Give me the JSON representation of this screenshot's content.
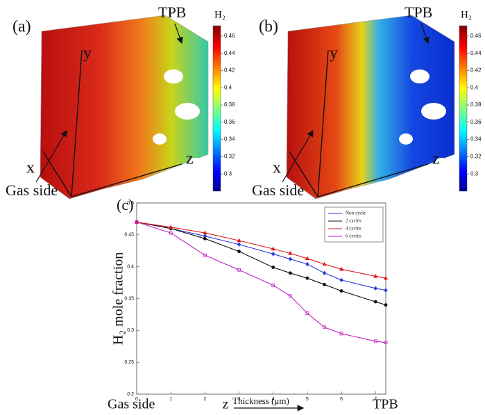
{
  "chart_data": [
    {
      "type": "volume",
      "panel_label": "(a)",
      "colorbar_title": "H₂",
      "style": "warm",
      "clim": [
        0.28,
        0.472
      ],
      "cticks": [
        0.3,
        0.32,
        0.34,
        0.36,
        0.38,
        0.4,
        0.42,
        0.44,
        0.46
      ],
      "annotations": {
        "tpb": "TPB",
        "gas_side": "Gas side",
        "x": "x",
        "y": "y",
        "z": "z"
      }
    },
    {
      "type": "volume",
      "panel_label": "(b)",
      "colorbar_title": "H₂",
      "style": "cool",
      "clim": [
        0.28,
        0.472
      ],
      "cticks": [
        0.3,
        0.32,
        0.34,
        0.36,
        0.38,
        0.4,
        0.42,
        0.44,
        0.46
      ],
      "annotations": {
        "tpb": "TPB",
        "gas_side": "Gas side",
        "x": "x",
        "y": "y",
        "z": "z"
      }
    },
    {
      "type": "line",
      "panel_label": "(c)",
      "y_label": "H₂ mole fraction",
      "x_label": "Thickness (μm)",
      "annotations": {
        "left": "Gas side",
        "axis": "z",
        "right": "TPB"
      },
      "x": [
        0,
        1,
        2,
        3,
        4,
        4.5,
        5,
        5.5,
        6,
        7,
        7.3
      ],
      "xlim": [
        0,
        7.3
      ],
      "xticks": [
        0,
        1,
        2,
        3,
        4,
        5,
        6,
        7
      ],
      "ylim": [
        0.2,
        0.5
      ],
      "yticks": [
        0.2,
        0.25,
        0.3,
        0.35,
        0.4,
        0.45,
        0.5
      ],
      "legend": "upper right",
      "series": [
        {
          "name": "Non-cycle",
          "color": "#2b3bd9",
          "marker": "diamond",
          "values": [
            0.47,
            0.46,
            0.448,
            0.435,
            0.42,
            0.412,
            0.404,
            0.39,
            0.379,
            0.366,
            0.363
          ]
        },
        {
          "name": "2 cycles",
          "color": "#111111",
          "marker": "circle",
          "values": [
            0.47,
            0.46,
            0.444,
            0.424,
            0.399,
            0.39,
            0.382,
            0.372,
            0.362,
            0.345,
            0.34
          ]
        },
        {
          "name": "4 cycles",
          "color": "#e01b1b",
          "marker": "triangle",
          "values": [
            0.47,
            0.462,
            0.453,
            0.441,
            0.428,
            0.421,
            0.413,
            0.404,
            0.396,
            0.385,
            0.382
          ]
        },
        {
          "name": "6 cycles",
          "color": "#c21fc2",
          "marker": "square",
          "values": [
            0.47,
            0.453,
            0.418,
            0.395,
            0.371,
            0.354,
            0.327,
            0.305,
            0.295,
            0.283,
            0.281
          ]
        }
      ]
    }
  ]
}
